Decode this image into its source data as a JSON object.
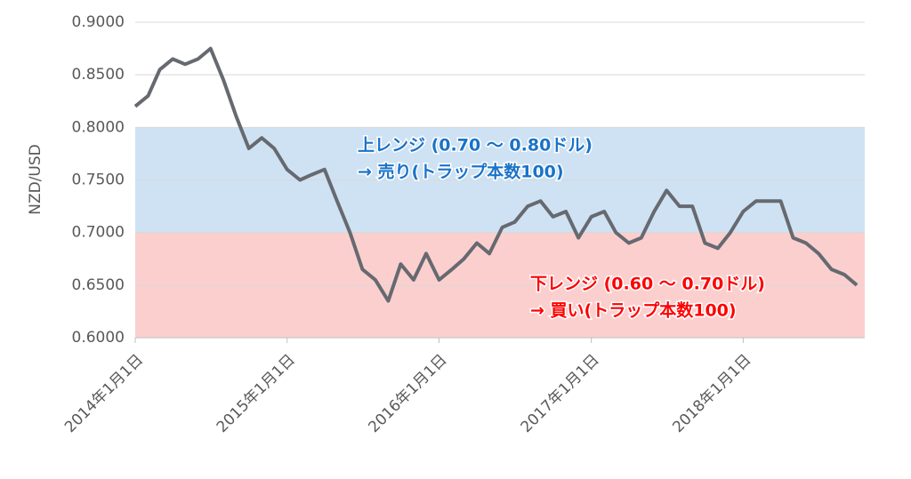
{
  "chart_data": {
    "type": "line",
    "y_label": "NZD/USD",
    "x": [
      "2014-01-01",
      "2014-02-01",
      "2014-03-01",
      "2014-04-01",
      "2014-05-01",
      "2014-06-01",
      "2014-07-01",
      "2014-08-01",
      "2014-09-01",
      "2014-10-01",
      "2014-11-01",
      "2014-12-01",
      "2015-01-01",
      "2015-02-01",
      "2015-03-01",
      "2015-04-01",
      "2015-05-01",
      "2015-06-01",
      "2015-07-01",
      "2015-08-01",
      "2015-09-01",
      "2015-10-01",
      "2015-11-01",
      "2015-12-01",
      "2016-01-01",
      "2016-02-01",
      "2016-03-01",
      "2016-04-01",
      "2016-05-01",
      "2016-06-01",
      "2016-07-01",
      "2016-08-01",
      "2016-09-01",
      "2016-10-01",
      "2016-11-01",
      "2016-12-01",
      "2017-01-01",
      "2017-02-01",
      "2017-03-01",
      "2017-04-01",
      "2017-05-01",
      "2017-06-01",
      "2017-07-01",
      "2017-08-01",
      "2017-09-01",
      "2017-10-01",
      "2017-11-01",
      "2017-12-01",
      "2018-01-01",
      "2018-02-01",
      "2018-03-01",
      "2018-04-01",
      "2018-05-01",
      "2018-06-01",
      "2018-07-01",
      "2018-08-01",
      "2018-09-01",
      "2018-10-01"
    ],
    "series": [
      {
        "color": "#666a70",
        "values": [
          0.82,
          0.83,
          0.855,
          0.865,
          0.86,
          0.865,
          0.875,
          0.845,
          0.81,
          0.78,
          0.79,
          0.78,
          0.76,
          0.75,
          0.755,
          0.76,
          0.73,
          0.7,
          0.665,
          0.655,
          0.635,
          0.67,
          0.655,
          0.68,
          0.655,
          0.665,
          0.675,
          0.69,
          0.68,
          0.705,
          0.71,
          0.725,
          0.73,
          0.715,
          0.72,
          0.695,
          0.715,
          0.72,
          0.7,
          0.69,
          0.695,
          0.72,
          0.74,
          0.725,
          0.725,
          0.69,
          0.685,
          0.7,
          0.72,
          0.73,
          0.73,
          0.73,
          0.695,
          0.69,
          0.68,
          0.665,
          0.66,
          0.65
        ]
      }
    ],
    "xlim": [
      "2014-01-01",
      "2018-10-20"
    ],
    "xticks": [
      {
        "value": "2014-01-01",
        "label": "2014年1月1日"
      },
      {
        "value": "2015-01-01",
        "label": "2015年1月1日"
      },
      {
        "value": "2016-01-01",
        "label": "2016年1月1日"
      },
      {
        "value": "2017-01-01",
        "label": "2017年1月1日"
      },
      {
        "value": "2018-01-01",
        "label": "2018年1月1日"
      }
    ],
    "ylim": [
      0.6,
      0.9
    ],
    "yticks": [
      {
        "value": 0.6,
        "label": "0.6000"
      },
      {
        "value": 0.65,
        "label": "0.6500"
      },
      {
        "value": 0.7,
        "label": "0.7000"
      },
      {
        "value": 0.75,
        "label": "0.7500"
      },
      {
        "value": 0.8,
        "label": "0.8000"
      },
      {
        "value": 0.85,
        "label": "0.8500"
      },
      {
        "value": 0.9,
        "label": "0.9000"
      }
    ],
    "grid": true,
    "bands": [
      {
        "from": 0.7,
        "to": 0.8,
        "color": "#cfe2f3",
        "text_color": "#1a73c8",
        "label": [
          "上レンジ (0.70 ～ 0.80ドル)",
          "→ 売り(トラップ本数100)"
        ]
      },
      {
        "from": 0.6,
        "to": 0.7,
        "color": "#fccfcf",
        "text_color": "#ff0000",
        "label": [
          "下レンジ (0.60 ～ 0.70ドル)",
          "→ 買い(トラップ本数100)"
        ]
      }
    ]
  }
}
